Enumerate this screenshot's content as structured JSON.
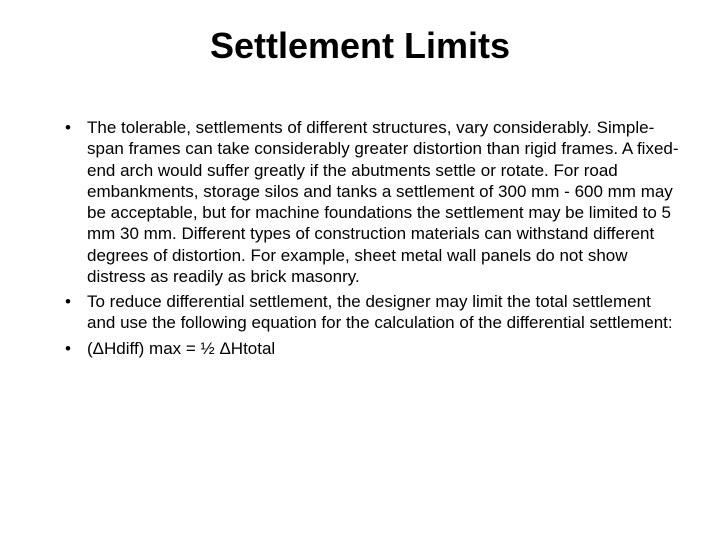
{
  "title": "Settlement Limits",
  "bullets": [
    "The tolerable, settlements of different structures, vary considerably. Simple-span frames can take considerably greater distortion than rigid frames. A fixed-end arch would suffer greatly if the abutments settle or rotate. For road embankments, storage silos and tanks a settlement of 300 mm - 600 mm may be acceptable, but for machine foundations the settlement may be limited to 5 mm 30 mm. Different types of construction materials can withstand different degrees of distortion. For example, sheet metal wall panels do not show distress as readily as brick masonry.",
    "To reduce differential settlement, the designer may limit the total settlement and use the following equation for the calculation of the differential settlement:",
    "(ΔHdiff) max = ½ ΔHtotal"
  ],
  "styles": {
    "background_color": "#ffffff",
    "text_color": "#000000",
    "title_fontsize": 36,
    "title_fontweight": "bold",
    "body_fontsize": 17,
    "body_line_height": 1.25,
    "font_family": "Arial"
  }
}
